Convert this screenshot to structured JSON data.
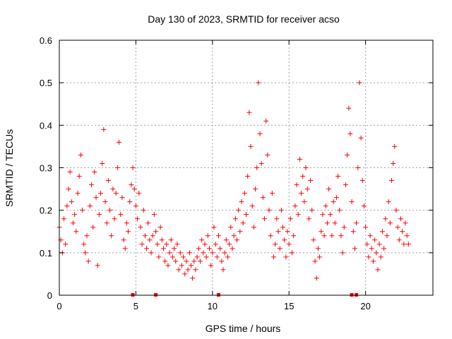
{
  "chart_data": {
    "type": "scatter",
    "title": "Day 130 of 2023, SRMTID for receiver acso",
    "xlabel": "GPS time / hours",
    "ylabel": "SRMTID / TECUs",
    "xlim": [
      0,
      24.4
    ],
    "ylim": [
      0,
      0.6
    ],
    "x_ticks": [
      0,
      5,
      10,
      15,
      20
    ],
    "x_tick_labels": [
      "0",
      "5",
      "10",
      "15",
      "20"
    ],
    "y_ticks": [
      0,
      0.1,
      0.2,
      0.3,
      0.4,
      0.5,
      0.6
    ],
    "y_tick_labels": [
      "0",
      "0.1",
      "0.2",
      "0.3",
      "0.4",
      "0.5",
      "0.6"
    ],
    "grid": true,
    "marker": "plus",
    "colors": {
      "series": "#ff0000",
      "grid": "#a0a0a0",
      "axis": "#000000"
    },
    "series": [
      {
        "name": "SRMTID",
        "points": [
          [
            0.0,
            0.16
          ],
          [
            0.1,
            0.13
          ],
          [
            0.2,
            0.1
          ],
          [
            0.3,
            0.18
          ],
          [
            0.4,
            0.12
          ],
          [
            0.5,
            0.21
          ],
          [
            0.6,
            0.25
          ],
          [
            0.7,
            0.29
          ],
          [
            0.8,
            0.22
          ],
          [
            0.9,
            0.17
          ],
          [
            1.0,
            0.19
          ],
          [
            1.1,
            0.15
          ],
          [
            1.2,
            0.24
          ],
          [
            1.3,
            0.28
          ],
          [
            1.4,
            0.33
          ],
          [
            1.5,
            0.2
          ],
          [
            1.6,
            0.12
          ],
          [
            1.7,
            0.1
          ],
          [
            1.8,
            0.14
          ],
          [
            1.9,
            0.08
          ],
          [
            2.0,
            0.21
          ],
          [
            2.1,
            0.26
          ],
          [
            2.2,
            0.16
          ],
          [
            2.3,
            0.29
          ],
          [
            2.4,
            0.23
          ],
          [
            2.5,
            0.07
          ],
          [
            2.6,
            0.19
          ],
          [
            2.7,
            0.24
          ],
          [
            2.8,
            0.31
          ],
          [
            2.9,
            0.39
          ],
          [
            3.0,
            0.22
          ],
          [
            3.1,
            0.17
          ],
          [
            3.2,
            0.27
          ],
          [
            3.3,
            0.2
          ],
          [
            3.4,
            0.14
          ],
          [
            3.5,
            0.25
          ],
          [
            3.6,
            0.18
          ],
          [
            3.7,
            0.24
          ],
          [
            3.8,
            0.3
          ],
          [
            3.9,
            0.36
          ],
          [
            4.0,
            0.19
          ],
          [
            4.1,
            0.23
          ],
          [
            4.2,
            0.13
          ],
          [
            4.3,
            0.11
          ],
          [
            4.4,
            0.17
          ],
          [
            4.5,
            0.15
          ],
          [
            4.6,
            0.22
          ],
          [
            4.7,
            0.26
          ],
          [
            4.8,
            0.3
          ],
          [
            4.9,
            0.25
          ],
          [
            5.0,
            0.21
          ],
          [
            5.1,
            0.18
          ],
          [
            5.2,
            0.24
          ],
          [
            5.3,
            0.16
          ],
          [
            5.4,
            0.12
          ],
          [
            5.5,
            0.2
          ],
          [
            5.6,
            0.14
          ],
          [
            5.7,
            0.11
          ],
          [
            5.8,
            0.17
          ],
          [
            5.9,
            0.13
          ],
          [
            6.0,
            0.1
          ],
          [
            6.1,
            0.14
          ],
          [
            6.2,
            0.19
          ],
          [
            6.3,
            0.15
          ],
          [
            6.4,
            0.12
          ],
          [
            6.5,
            0.09
          ],
          [
            6.6,
            0.16
          ],
          [
            6.7,
            0.13
          ],
          [
            6.8,
            0.11
          ],
          [
            6.9,
            0.08
          ],
          [
            7.0,
            0.12
          ],
          [
            7.1,
            0.07
          ],
          [
            7.2,
            0.1
          ],
          [
            7.3,
            0.13
          ],
          [
            7.4,
            0.09
          ],
          [
            7.5,
            0.11
          ],
          [
            7.6,
            0.08
          ],
          [
            7.7,
            0.12
          ],
          [
            7.8,
            0.06
          ],
          [
            7.9,
            0.1
          ],
          [
            8.0,
            0.07
          ],
          [
            8.1,
            0.09
          ],
          [
            8.2,
            0.05
          ],
          [
            8.3,
            0.08
          ],
          [
            8.4,
            0.06
          ],
          [
            8.5,
            0.1
          ],
          [
            8.6,
            0.07
          ],
          [
            8.7,
            0.04
          ],
          [
            8.8,
            0.08
          ],
          [
            8.9,
            0.06
          ],
          [
            9.0,
            0.09
          ],
          [
            9.1,
            0.11
          ],
          [
            9.2,
            0.08
          ],
          [
            9.3,
            0.13
          ],
          [
            9.4,
            0.1
          ],
          [
            9.5,
            0.12
          ],
          [
            9.6,
            0.09
          ],
          [
            9.7,
            0.14
          ],
          [
            9.8,
            0.11
          ],
          [
            9.9,
            0.07
          ],
          [
            10.0,
            0.1
          ],
          [
            10.1,
            0.16
          ],
          [
            10.2,
            0.12
          ],
          [
            10.3,
            0.09
          ],
          [
            10.4,
            0.14
          ],
          [
            10.5,
            0.11
          ],
          [
            10.6,
            0.08
          ],
          [
            10.7,
            0.06
          ],
          [
            10.8,
            0.1
          ],
          [
            10.9,
            0.13
          ],
          [
            11.0,
            0.09
          ],
          [
            11.1,
            0.12
          ],
          [
            11.2,
            0.16
          ],
          [
            11.3,
            0.11
          ],
          [
            11.4,
            0.14
          ],
          [
            11.5,
            0.18
          ],
          [
            11.6,
            0.13
          ],
          [
            11.7,
            0.2
          ],
          [
            11.8,
            0.15
          ],
          [
            11.9,
            0.22
          ],
          [
            12.0,
            0.17
          ],
          [
            12.1,
            0.24
          ],
          [
            12.2,
            0.19
          ],
          [
            12.3,
            0.28
          ],
          [
            12.4,
            0.43
          ],
          [
            12.5,
            0.35
          ],
          [
            12.6,
            0.21
          ],
          [
            12.7,
            0.16
          ],
          [
            12.8,
            0.25
          ],
          [
            12.9,
            0.3
          ],
          [
            13.0,
            0.5
          ],
          [
            13.1,
            0.38
          ],
          [
            13.2,
            0.31
          ],
          [
            13.3,
            0.23
          ],
          [
            13.4,
            0.18
          ],
          [
            13.5,
            0.41
          ],
          [
            13.6,
            0.33
          ],
          [
            13.7,
            0.2
          ],
          [
            13.8,
            0.14
          ],
          [
            13.9,
            0.24
          ],
          [
            14.0,
            0.09
          ],
          [
            14.1,
            0.12
          ],
          [
            14.2,
            0.18
          ],
          [
            14.3,
            0.15
          ],
          [
            14.4,
            0.11
          ],
          [
            14.5,
            0.2
          ],
          [
            14.6,
            0.16
          ],
          [
            14.7,
            0.13
          ],
          [
            14.8,
            0.09
          ],
          [
            14.9,
            0.15
          ],
          [
            15.0,
            0.12
          ],
          [
            15.1,
            0.18
          ],
          [
            15.2,
            0.1
          ],
          [
            15.3,
            0.14
          ],
          [
            15.4,
            0.21
          ],
          [
            15.5,
            0.26
          ],
          [
            15.6,
            0.19
          ],
          [
            15.7,
            0.32
          ],
          [
            15.8,
            0.24
          ],
          [
            15.9,
            0.28
          ],
          [
            16.0,
            0.22
          ],
          [
            16.1,
            0.3
          ],
          [
            16.2,
            0.25
          ],
          [
            16.3,
            0.18
          ],
          [
            16.4,
            0.27
          ],
          [
            16.5,
            0.2
          ],
          [
            16.6,
            0.13
          ],
          [
            16.7,
            0.08
          ],
          [
            16.8,
            0.04
          ],
          [
            16.9,
            0.11
          ],
          [
            17.0,
            0.09
          ],
          [
            17.1,
            0.15
          ],
          [
            17.2,
            0.19
          ],
          [
            17.3,
            0.14
          ],
          [
            17.4,
            0.21
          ],
          [
            17.5,
            0.17
          ],
          [
            17.6,
            0.25
          ],
          [
            17.7,
            0.19
          ],
          [
            17.8,
            0.14
          ],
          [
            17.9,
            0.22
          ],
          [
            18.0,
            0.17
          ],
          [
            18.1,
            0.23
          ],
          [
            18.2,
            0.28
          ],
          [
            18.3,
            0.2
          ],
          [
            18.4,
            0.14
          ],
          [
            18.5,
            0.1
          ],
          [
            18.6,
            0.16
          ],
          [
            18.7,
            0.26
          ],
          [
            18.8,
            0.33
          ],
          [
            18.9,
            0.44
          ],
          [
            19.0,
            0.38
          ],
          [
            19.1,
            0.22
          ],
          [
            19.2,
            0.15
          ],
          [
            19.3,
            0.11
          ],
          [
            19.4,
            0.17
          ],
          [
            19.5,
            0.3
          ],
          [
            19.6,
            0.5
          ],
          [
            19.7,
            0.37
          ],
          [
            19.8,
            0.27
          ],
          [
            19.9,
            0.21
          ],
          [
            20.0,
            0.16
          ],
          [
            20.1,
            0.12
          ],
          [
            20.2,
            0.09
          ],
          [
            20.3,
            0.14
          ],
          [
            20.4,
            0.11
          ],
          [
            20.5,
            0.08
          ],
          [
            20.6,
            0.13
          ],
          [
            20.7,
            0.1
          ],
          [
            20.8,
            0.06
          ],
          [
            20.9,
            0.12
          ],
          [
            21.0,
            0.09
          ],
          [
            21.1,
            0.15
          ],
          [
            21.2,
            0.11
          ],
          [
            21.3,
            0.18
          ],
          [
            21.4,
            0.14
          ],
          [
            21.5,
            0.22
          ],
          [
            21.6,
            0.17
          ],
          [
            21.7,
            0.27
          ],
          [
            21.8,
            0.31
          ],
          [
            21.9,
            0.35
          ],
          [
            22.0,
            0.2
          ],
          [
            22.1,
            0.16
          ],
          [
            22.2,
            0.13
          ],
          [
            22.3,
            0.18
          ],
          [
            22.4,
            0.15
          ],
          [
            22.5,
            0.12
          ],
          [
            22.6,
            0.17
          ],
          [
            22.7,
            0.14
          ],
          [
            22.8,
            0.12
          ]
        ]
      }
    ],
    "zero_markers_hours": [
      4.8,
      6.3,
      10.4,
      19.1,
      19.4
    ]
  }
}
